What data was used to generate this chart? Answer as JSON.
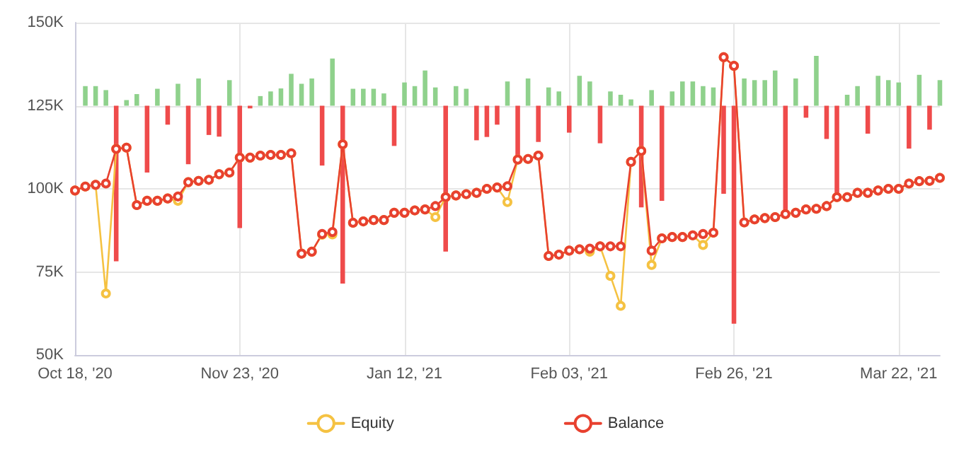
{
  "chart_data": {
    "type": "line",
    "categories": [
      "Oct 18, '20",
      null,
      null,
      null,
      null,
      null,
      null,
      null,
      null,
      null,
      null,
      null,
      null,
      null,
      null,
      null,
      "Nov 23, '20",
      null,
      null,
      null,
      null,
      null,
      null,
      null,
      null,
      null,
      null,
      null,
      null,
      null,
      null,
      null,
      "Jan 12, '21",
      null,
      null,
      null,
      null,
      null,
      null,
      null,
      null,
      null,
      null,
      null,
      null,
      null,
      null,
      null,
      "Feb 03, '21",
      null,
      null,
      null,
      null,
      null,
      null,
      null,
      null,
      null,
      null,
      null,
      null,
      null,
      null,
      null,
      "Feb 26, '21",
      null,
      null,
      null,
      null,
      null,
      null,
      null,
      null,
      null,
      null,
      null,
      null,
      null,
      null,
      null,
      "Mar 22, '21",
      null,
      null,
      null,
      null
    ],
    "ylim": [
      50,
      150
    ],
    "yticks": [
      {
        "value": 50,
        "label": "50K"
      },
      {
        "value": 75,
        "label": "75K"
      },
      {
        "value": 100,
        "label": "100K"
      },
      {
        "value": 125,
        "label": "125K"
      },
      {
        "value": 150,
        "label": "150K"
      }
    ],
    "grid": true,
    "legend": "bottom",
    "series": [
      {
        "type": "bar",
        "base": [
          null,
          125,
          125,
          125,
          125,
          125,
          125,
          125,
          125,
          125,
          125,
          125,
          125,
          125,
          125,
          125,
          125,
          125,
          125,
          125,
          125,
          125,
          125,
          125,
          125,
          125,
          125,
          125,
          125,
          125,
          125,
          125,
          125,
          125,
          125,
          125,
          125,
          125,
          125,
          125,
          125,
          125,
          125,
          125,
          125,
          125,
          125,
          125,
          125,
          125,
          125,
          125,
          125,
          125,
          125,
          125,
          125,
          125,
          125,
          125,
          125,
          125,
          125,
          125,
          125,
          125,
          125,
          125,
          125,
          125,
          125,
          125,
          125,
          125,
          125,
          125,
          125,
          125,
          125,
          125,
          125,
          125,
          125,
          125,
          125
        ],
        "values": [
          null,
          5.9,
          5.9,
          4.7,
          -46.8,
          1.7,
          3.5,
          -20.1,
          5.1,
          -5.7,
          6.6,
          -17.6,
          8.2,
          -8.8,
          -9.3,
          7.7,
          -36.8,
          -0.8,
          2.9,
          4.3,
          5.2,
          9.6,
          6.6,
          8.2,
          -18.0,
          14.2,
          -53.5,
          5.1,
          5.1,
          5.1,
          3.7,
          -12.1,
          7.0,
          5.9,
          10.6,
          5.5,
          -43.9,
          5.9,
          5.1,
          -10.4,
          -9.4,
          -5.7,
          7.3,
          -16.0,
          8.2,
          -10.9,
          5.5,
          4.3,
          -8.1,
          9.0,
          7.3,
          -11.3,
          4.3,
          3.3,
          1.9,
          -30.6,
          4.7,
          -28.6,
          4.3,
          7.3,
          7.3,
          5.9,
          5.5,
          -26.5,
          -65.6,
          8.2,
          7.7,
          7.7,
          10.6,
          -32.2,
          8.2,
          -3.6,
          15.0,
          -10.0,
          -27.3,
          3.3,
          5.9,
          -8.4,
          9.0,
          7.7,
          7.0,
          -12.9,
          9.3,
          -7.2,
          7.7
        ],
        "colors": [
          null,
          "#8fd18c",
          "#8fd18c",
          "#8fd18c",
          "#ef4b4b",
          "#8fd18c",
          "#8fd18c",
          "#ef4b4b",
          "#8fd18c",
          "#ef4b4b",
          "#8fd18c",
          "#ef4b4b",
          "#8fd18c",
          "#ef4b4b",
          "#ef4b4b",
          "#8fd18c",
          "#ef4b4b",
          "#ef4b4b",
          "#8fd18c",
          "#8fd18c",
          "#8fd18c",
          "#8fd18c",
          "#8fd18c",
          "#8fd18c",
          "#ef4b4b",
          "#8fd18c",
          "#ef4b4b",
          "#8fd18c",
          "#8fd18c",
          "#8fd18c",
          "#8fd18c",
          "#ef4b4b",
          "#8fd18c",
          "#8fd18c",
          "#8fd18c",
          "#8fd18c",
          "#ef4b4b",
          "#8fd18c",
          "#8fd18c",
          "#ef4b4b",
          "#ef4b4b",
          "#ef4b4b",
          "#8fd18c",
          "#ef4b4b",
          "#8fd18c",
          "#ef4b4b",
          "#8fd18c",
          "#8fd18c",
          "#ef4b4b",
          "#8fd18c",
          "#8fd18c",
          "#ef4b4b",
          "#8fd18c",
          "#8fd18c",
          "#8fd18c",
          "#ef4b4b",
          "#8fd18c",
          "#ef4b4b",
          "#8fd18c",
          "#8fd18c",
          "#8fd18c",
          "#8fd18c",
          "#8fd18c",
          "#ef4b4b",
          "#ef4b4b",
          "#8fd18c",
          "#8fd18c",
          "#8fd18c",
          "#8fd18c",
          "#ef4b4b",
          "#8fd18c",
          "#ef4b4b",
          "#8fd18c",
          "#ef4b4b",
          "#ef4b4b",
          "#8fd18c",
          "#8fd18c",
          "#ef4b4b",
          "#8fd18c",
          "#8fd18c",
          "#8fd18c",
          "#ef4b4b",
          "#8fd18c",
          "#ef4b4b",
          "#8fd18c"
        ]
      },
      {
        "name": "Equity",
        "color": "#f5c242",
        "marker": "circle",
        "values": [
          99.5,
          100.7,
          101.2,
          68.5,
          112,
          112.4,
          95.1,
          96.4,
          96.4,
          97.1,
          96.4,
          102,
          102.4,
          102.7,
          104.4,
          104.9,
          109.4,
          109.4,
          110,
          110.2,
          110.2,
          110.7,
          80.5,
          81.1,
          86.2,
          86.3,
          113.4,
          89.8,
          90.2,
          90.6,
          90.6,
          92.8,
          92.8,
          93.5,
          93.8,
          91.5,
          97.5,
          98,
          98.4,
          98.8,
          100,
          100.4,
          96.0,
          108.8,
          109,
          110,
          79.8,
          80.2,
          81.4,
          81.8,
          81.1,
          82.7,
          73.8,
          64.8,
          108.1,
          111.4,
          77.1,
          85.1,
          85.5,
          85.5,
          86,
          83.1,
          86.8,
          139.6,
          137,
          89.9,
          90.8,
          91.2,
          91.5,
          92.4,
          92.8,
          93.8,
          94,
          94.8,
          97.5,
          97.5,
          98.8,
          98.8,
          99.5,
          100,
          100,
          101.6,
          102.3,
          102.4,
          103.3
        ]
      },
      {
        "name": "Balance",
        "color": "#e8412f",
        "marker": "circle",
        "values": [
          99.5,
          100.7,
          101.2,
          101.6,
          112,
          112.4,
          95.1,
          96.4,
          96.4,
          97.1,
          97.7,
          102,
          102.4,
          102.7,
          104.4,
          104.9,
          109.4,
          109.4,
          110,
          110.2,
          110.2,
          110.7,
          80.5,
          81.1,
          86.4,
          87.0,
          113.4,
          89.8,
          90.2,
          90.6,
          90.6,
          92.8,
          92.8,
          93.5,
          93.8,
          94.8,
          97.5,
          98,
          98.4,
          98.8,
          100,
          100.4,
          100.8,
          108.8,
          109,
          110,
          79.8,
          80.2,
          81.4,
          81.8,
          82,
          82.7,
          82.7,
          82.7,
          108.1,
          111.4,
          81.4,
          85.1,
          85.5,
          85.5,
          86,
          86.4,
          86.8,
          139.6,
          137,
          89.9,
          90.8,
          91.2,
          91.5,
          92.4,
          92.8,
          93.8,
          94,
          94.8,
          97.5,
          97.5,
          98.8,
          98.8,
          99.5,
          100,
          100,
          101.6,
          102.3,
          102.4,
          103.3
        ]
      }
    ]
  }
}
